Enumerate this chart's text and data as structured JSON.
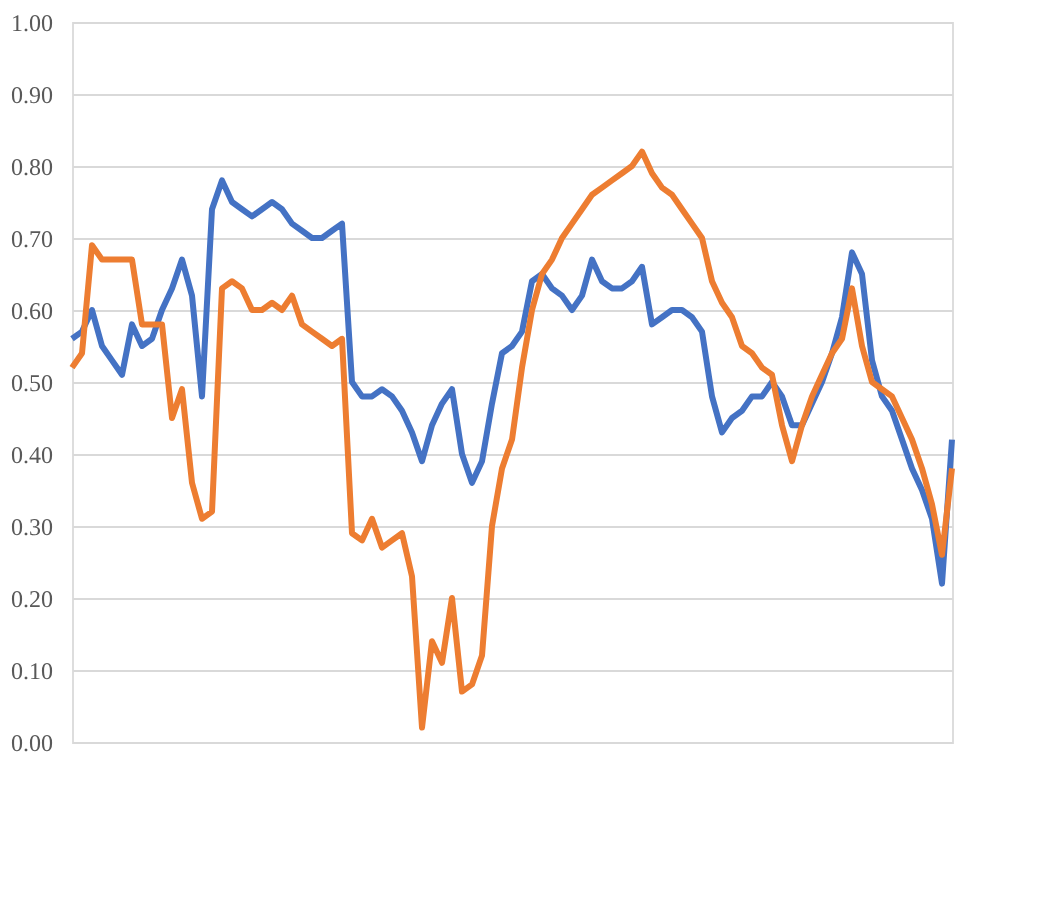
{
  "chart_data": {
    "type": "line",
    "categories": [
      null,
      null,
      null,
      null,
      null,
      null,
      null,
      null,
      null,
      null,
      null,
      null,
      null,
      null,
      null,
      null,
      null,
      null,
      null,
      null,
      null,
      null,
      null,
      null,
      null,
      null,
      null,
      null,
      null,
      null,
      null,
      null,
      null,
      null,
      null,
      null,
      null,
      null,
      null,
      null,
      null,
      null,
      null,
      null,
      null,
      null,
      null,
      null,
      null,
      null,
      null,
      null,
      null,
      null,
      null,
      null,
      null,
      null,
      null,
      null,
      null,
      null,
      null,
      null,
      null,
      null,
      null,
      null,
      null,
      null,
      null,
      null,
      null,
      null,
      null,
      null,
      null,
      null,
      null,
      null,
      null,
      null,
      null,
      null,
      null,
      null,
      null,
      null,
      null
    ],
    "series": [
      {
        "color": "#4472c4",
        "values": [
          0.56,
          0.57,
          0.6,
          0.55,
          0.53,
          0.51,
          0.58,
          0.55,
          0.56,
          0.6,
          0.63,
          0.67,
          0.62,
          0.48,
          0.74,
          0.78,
          0.75,
          0.74,
          0.73,
          0.74,
          0.75,
          0.74,
          0.72,
          0.71,
          0.7,
          0.7,
          0.71,
          0.72,
          0.5,
          0.48,
          0.48,
          0.49,
          0.48,
          0.46,
          0.43,
          0.39,
          0.44,
          0.47,
          0.49,
          0.4,
          0.36,
          0.39,
          0.47,
          0.54,
          0.55,
          0.57,
          0.64,
          0.65,
          0.63,
          0.62,
          0.6,
          0.62,
          0.67,
          0.64,
          0.63,
          0.63,
          0.64,
          0.66,
          0.58,
          0.59,
          0.6,
          0.6,
          0.59,
          0.57,
          0.48,
          0.43,
          0.45,
          0.46,
          0.48,
          0.48,
          0.5,
          0.48,
          0.44,
          0.44,
          0.47,
          0.5,
          0.54,
          0.59,
          0.68,
          0.65,
          0.53,
          0.48,
          0.46,
          0.42,
          0.38,
          0.35,
          0.31,
          0.22,
          0.42
        ]
      },
      {
        "color": "#ed7d31",
        "values": [
          0.52,
          0.54,
          0.69,
          0.67,
          0.67,
          0.67,
          0.67,
          0.58,
          0.58,
          0.58,
          0.45,
          0.49,
          0.36,
          0.31,
          0.32,
          0.63,
          0.64,
          0.63,
          0.6,
          0.6,
          0.61,
          0.6,
          0.62,
          0.58,
          0.57,
          0.56,
          0.55,
          0.56,
          0.29,
          0.28,
          0.31,
          0.27,
          0.28,
          0.29,
          0.23,
          0.02,
          0.14,
          0.11,
          0.2,
          0.07,
          0.08,
          0.12,
          0.3,
          0.38,
          0.42,
          0.52,
          0.6,
          0.65,
          0.67,
          0.7,
          0.72,
          0.74,
          0.76,
          0.77,
          0.78,
          0.79,
          0.8,
          0.82,
          0.79,
          0.77,
          0.76,
          0.74,
          0.72,
          0.7,
          0.64,
          0.61,
          0.59,
          0.55,
          0.54,
          0.52,
          0.51,
          0.44,
          0.39,
          0.44,
          0.48,
          0.51,
          0.54,
          0.56,
          0.63,
          0.55,
          0.5,
          0.49,
          0.48,
          0.45,
          0.42,
          0.38,
          0.33,
          0.26,
          0.38
        ]
      }
    ],
    "ylim": [
      0,
      1
    ],
    "yticks": [
      {
        "value": 0,
        "label": "0.00"
      },
      {
        "value": 0.1,
        "label": "0.10"
      },
      {
        "value": 0.2,
        "label": "0.20"
      },
      {
        "value": 0.3,
        "label": "0.30"
      },
      {
        "value": 0.4,
        "label": "0.40"
      },
      {
        "value": 0.5,
        "label": "0.50"
      },
      {
        "value": 0.6,
        "label": "0.60"
      },
      {
        "value": 0.7,
        "label": "0.70"
      },
      {
        "value": 0.8,
        "label": "0.80"
      },
      {
        "value": 0.9,
        "label": "0.90"
      },
      {
        "value": 1,
        "label": "1.00"
      }
    ],
    "grid": "y",
    "legend": false,
    "marker": "none",
    "line_style": "solid"
  }
}
